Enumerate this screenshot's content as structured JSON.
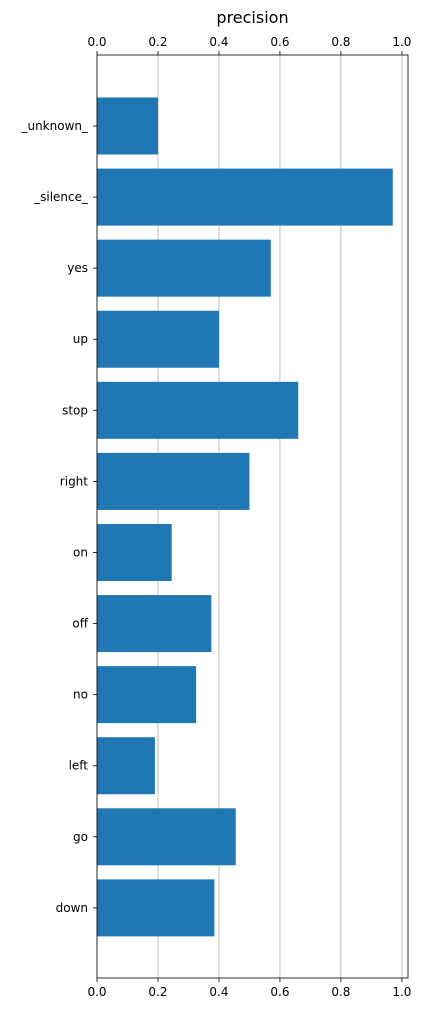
{
  "chart_data": {
    "type": "bar",
    "orientation": "horizontal",
    "title": "precision",
    "xlabel": "",
    "ylabel": "",
    "xlim": [
      0,
      1.02
    ],
    "xticks": [
      "0.0",
      "0.2",
      "0.4",
      "0.6",
      "0.8",
      "1.0"
    ],
    "x_axis_ticks_top": true,
    "x_axis_ticks_bottom": true,
    "grid": "vertical",
    "bar_color": "#1f77b4",
    "categories": [
      "_unknown_",
      "_silence_",
      "yes",
      "up",
      "stop",
      "right",
      "on",
      "off",
      "no",
      "left",
      "go",
      "down"
    ],
    "values": [
      0.2,
      0.97,
      0.57,
      0.4,
      0.66,
      0.5,
      0.245,
      0.375,
      0.325,
      0.19,
      0.455,
      0.385
    ]
  }
}
